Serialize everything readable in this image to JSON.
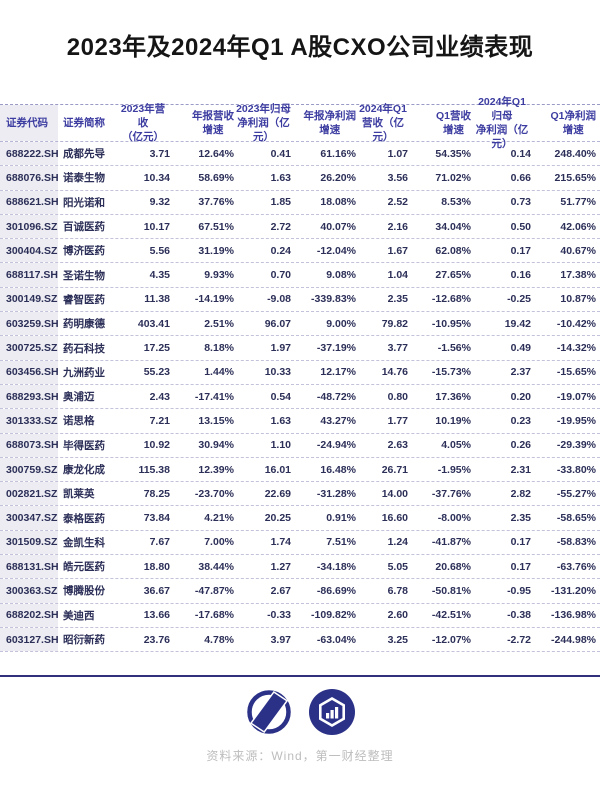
{
  "title": "2023年及2024年Q1 A股CXO公司业绩表现",
  "colors": {
    "accent_navy": "#2b3187",
    "header_text": "#3c3ca1",
    "data_text": "#2c2f58",
    "first_col_bg": "#ececf2",
    "dashed_line": "#b5b5d5",
    "source_text": "#bdbdbd"
  },
  "icons": {
    "logo1": "yicai-circle-parallelogram-logo",
    "logo2": "hexagon-bar-chart-shield-logo"
  },
  "table": {
    "headers": [
      "证券代码",
      "证券简称",
      "2023年营收\n（亿元）",
      "年报营收\n增速",
      "2023年归母\n净利润（亿元）",
      "年报净利润\n增速",
      "2024年Q1\n营收（亿元）",
      "Q1营收\n增速",
      "2024年Q1归母\n净利润（亿元）",
      "Q1净利润\n增速"
    ],
    "rows": [
      [
        "688222.SH",
        "成都先导",
        "3.71",
        "12.64%",
        "0.41",
        "61.16%",
        "1.07",
        "54.35%",
        "0.14",
        "248.40%"
      ],
      [
        "688076.SH",
        "诺泰生物",
        "10.34",
        "58.69%",
        "1.63",
        "26.20%",
        "3.56",
        "71.02%",
        "0.66",
        "215.65%"
      ],
      [
        "688621.SH",
        "阳光诺和",
        "9.32",
        "37.76%",
        "1.85",
        "18.08%",
        "2.52",
        "8.53%",
        "0.73",
        "51.77%"
      ],
      [
        "301096.SZ",
        "百诚医药",
        "10.17",
        "67.51%",
        "2.72",
        "40.07%",
        "2.16",
        "34.04%",
        "0.50",
        "42.06%"
      ],
      [
        "300404.SZ",
        "博济医药",
        "5.56",
        "31.19%",
        "0.24",
        "-12.04%",
        "1.67",
        "62.08%",
        "0.17",
        "40.67%"
      ],
      [
        "688117.SH",
        "圣诺生物",
        "4.35",
        "9.93%",
        "0.70",
        "9.08%",
        "1.04",
        "27.65%",
        "0.16",
        "17.38%"
      ],
      [
        "300149.SZ",
        "睿智医药",
        "11.38",
        "-14.19%",
        "-9.08",
        "-339.83%",
        "2.35",
        "-12.68%",
        "-0.25",
        "10.87%"
      ],
      [
        "603259.SH",
        "药明康德",
        "403.41",
        "2.51%",
        "96.07",
        "9.00%",
        "79.82",
        "-10.95%",
        "19.42",
        "-10.42%"
      ],
      [
        "300725.SZ",
        "药石科技",
        "17.25",
        "8.18%",
        "1.97",
        "-37.19%",
        "3.77",
        "-1.56%",
        "0.49",
        "-14.32%"
      ],
      [
        "603456.SH",
        "九洲药业",
        "55.23",
        "1.44%",
        "10.33",
        "12.17%",
        "14.76",
        "-15.73%",
        "2.37",
        "-15.65%"
      ],
      [
        "688293.SH",
        "奥浦迈",
        "2.43",
        "-17.41%",
        "0.54",
        "-48.72%",
        "0.80",
        "17.36%",
        "0.20",
        "-19.07%"
      ],
      [
        "301333.SZ",
        "诺思格",
        "7.21",
        "13.15%",
        "1.63",
        "43.27%",
        "1.77",
        "10.19%",
        "0.23",
        "-19.95%"
      ],
      [
        "688073.SH",
        "毕得医药",
        "10.92",
        "30.94%",
        "1.10",
        "-24.94%",
        "2.63",
        "4.05%",
        "0.26",
        "-29.39%"
      ],
      [
        "300759.SZ",
        "康龙化成",
        "115.38",
        "12.39%",
        "16.01",
        "16.48%",
        "26.71",
        "-1.95%",
        "2.31",
        "-33.80%"
      ],
      [
        "002821.SZ",
        "凯莱英",
        "78.25",
        "-23.70%",
        "22.69",
        "-31.28%",
        "14.00",
        "-37.76%",
        "2.82",
        "-55.27%"
      ],
      [
        "300347.SZ",
        "泰格医药",
        "73.84",
        "4.21%",
        "20.25",
        "0.91%",
        "16.60",
        "-8.00%",
        "2.35",
        "-58.65%"
      ],
      [
        "301509.SZ",
        "金凯生科",
        "7.67",
        "7.00%",
        "1.74",
        "7.51%",
        "1.24",
        "-41.87%",
        "0.17",
        "-58.83%"
      ],
      [
        "688131.SH",
        "皓元医药",
        "18.80",
        "38.44%",
        "1.27",
        "-34.18%",
        "5.05",
        "20.68%",
        "0.17",
        "-63.76%"
      ],
      [
        "300363.SZ",
        "博腾股份",
        "36.67",
        "-47.87%",
        "2.67",
        "-86.69%",
        "6.78",
        "-50.81%",
        "-0.95",
        "-131.20%"
      ],
      [
        "688202.SH",
        "美迪西",
        "13.66",
        "-17.68%",
        "-0.33",
        "-109.82%",
        "2.60",
        "-42.51%",
        "-0.38",
        "-136.98%"
      ],
      [
        "603127.SH",
        "昭衍新药",
        "23.76",
        "4.78%",
        "3.97",
        "-63.04%",
        "3.25",
        "-12.07%",
        "-2.72",
        "-244.98%"
      ]
    ]
  },
  "footer": {
    "source": "资料来源：Wind，第一财经整理"
  }
}
